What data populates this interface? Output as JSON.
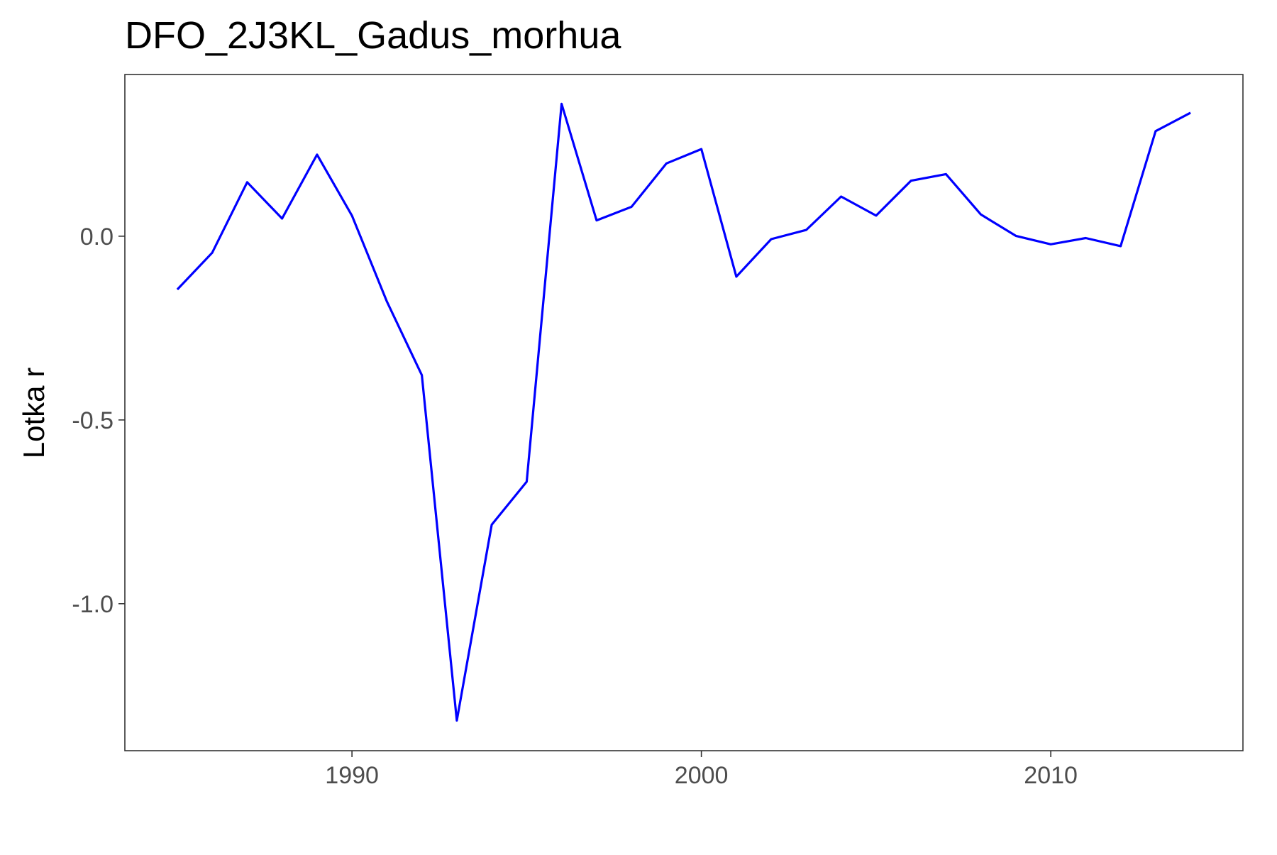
{
  "chart_data": {
    "type": "line",
    "title": "DFO_2J3KL_Gadus_morhua",
    "xlabel": "",
    "ylabel": "Lotka r",
    "xlim": [
      1983.5,
      2015.5
    ],
    "ylim": [
      -1.4,
      0.44
    ],
    "x_ticks": [
      1990,
      2000,
      2010
    ],
    "y_ticks": [
      {
        "value": 0.0,
        "label": "0.0"
      },
      {
        "value": -0.5,
        "label": "-0.5"
      },
      {
        "value": -1.0,
        "label": "-1.0"
      }
    ],
    "grid": false,
    "line_color": "#0000ff",
    "series": [
      {
        "x": [
          1985,
          1986,
          1987,
          1988,
          1989,
          1990,
          1991,
          1992,
          1993,
          1994,
          1995,
          1996,
          1997,
          1998,
          1999,
          2000,
          2001,
          2002,
          2003,
          2004,
          2005,
          2006,
          2007,
          2008,
          2009,
          2010,
          2011,
          2012,
          2013,
          2014
        ],
        "y": [
          -0.145,
          -0.045,
          0.147,
          0.048,
          0.222,
          0.056,
          -0.178,
          -0.378,
          -1.318,
          -0.785,
          -0.668,
          0.36,
          0.043,
          0.08,
          0.198,
          0.237,
          -0.11,
          -0.008,
          0.017,
          0.108,
          0.056,
          0.151,
          0.169,
          0.059,
          0.001,
          -0.022,
          -0.005,
          -0.027,
          0.286,
          0.336
        ]
      }
    ]
  }
}
